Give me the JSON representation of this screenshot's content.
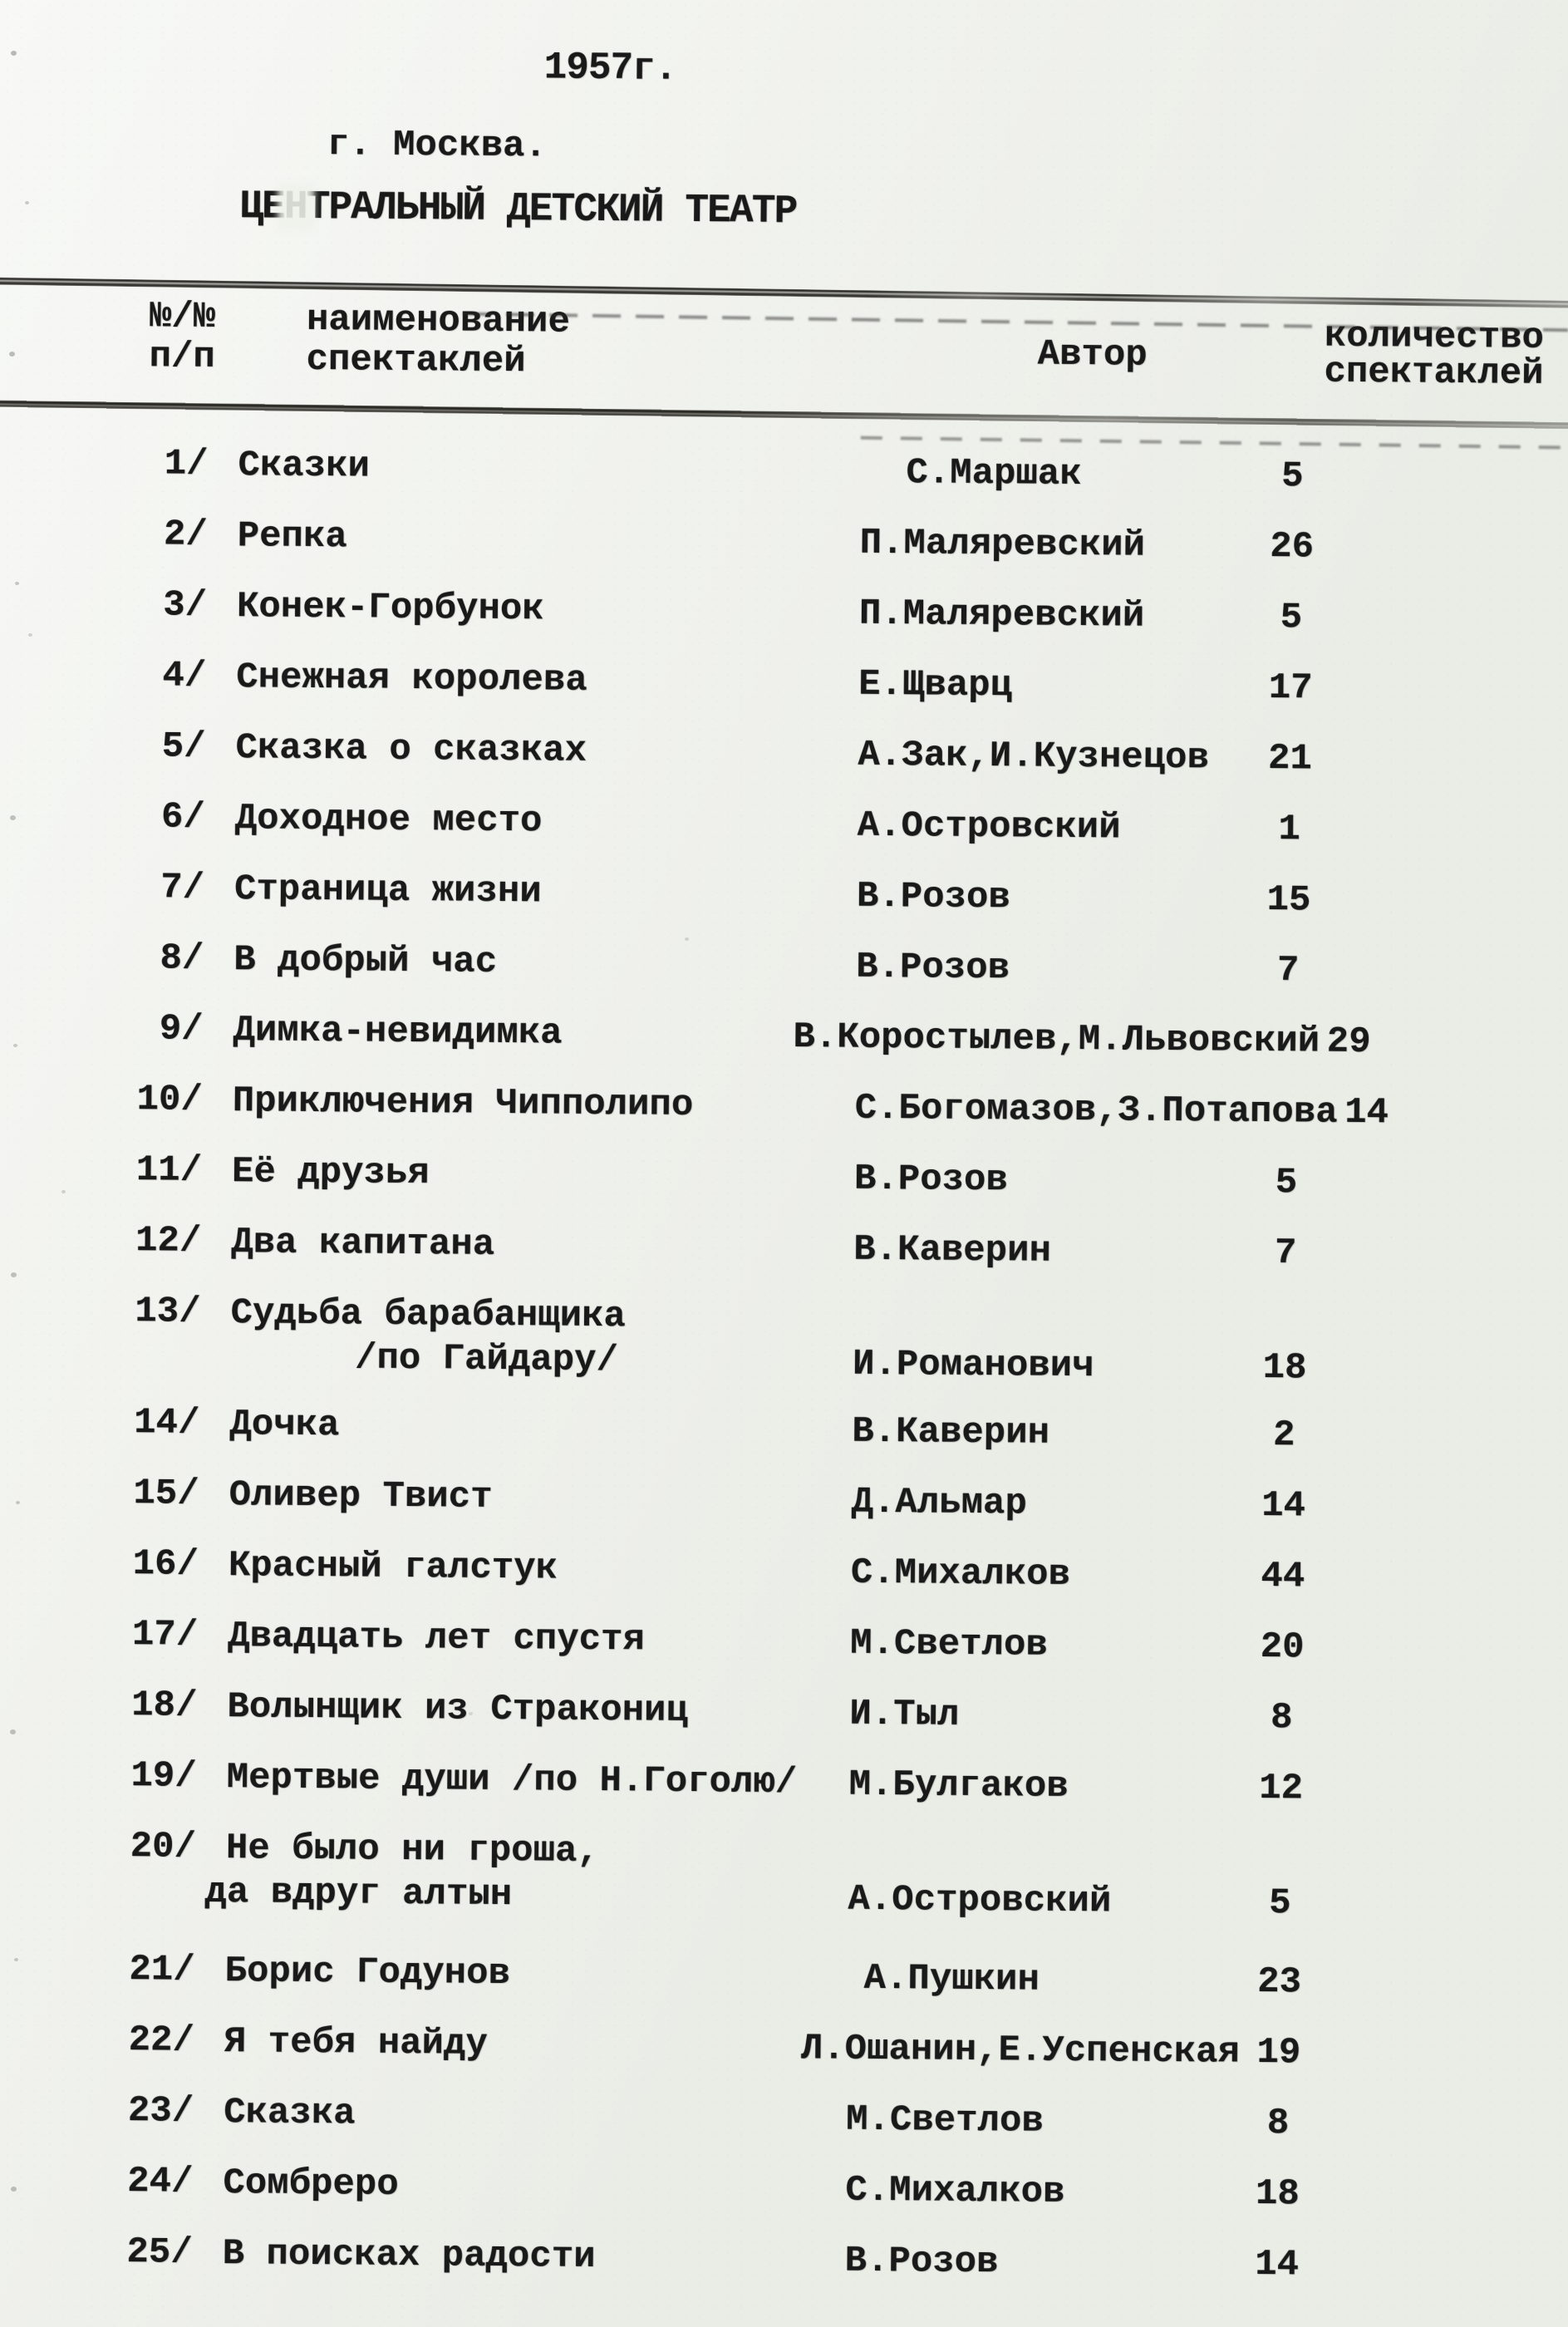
{
  "document": {
    "year": "1957г.",
    "city": "г. Москва.",
    "theater": "ЦЕНТРАЛЬНЫЙ ДЕТСКИЙ ТЕАТР"
  },
  "table": {
    "headers": {
      "num_line1": "№/№",
      "num_line2": "п/п",
      "name_line1": "наименование",
      "name_line2": "спектаклей",
      "author": "Автор",
      "count_line1": "количество",
      "count_line2": "спектаклей"
    },
    "rows": [
      {
        "num": "1/",
        "name": "Сказки",
        "author": "С.Маршак",
        "count": "5"
      },
      {
        "num": "2/",
        "name": "Репка",
        "author": "П.Маляревский",
        "count": "26"
      },
      {
        "num": "3/",
        "name": "Конек-Горбунок",
        "author": "П.Маляревский",
        "count": "5"
      },
      {
        "num": "4/",
        "name": "Снежная королева",
        "author": "Е.Щварц",
        "count": "17"
      },
      {
        "num": "5/",
        "name": "Сказка о сказках",
        "author": "А.Зак,И.Кузнецов",
        "count": "21"
      },
      {
        "num": "6/",
        "name": "Доходное место",
        "author": "А.Островский",
        "count": "1"
      },
      {
        "num": "7/",
        "name": "Страница жизни",
        "author": "В.Розов",
        "count": "15"
      },
      {
        "num": "8/",
        "name": "В добрый час",
        "author": "В.Розов",
        "count": "7"
      },
      {
        "num": "9/",
        "name": "Димка-невидимка",
        "author": "В.Коростылев,М.Львовский",
        "count": "29"
      },
      {
        "num": "10/",
        "name": "Приключения Чипполипо",
        "author": "С.Богомазов,З.Потапова",
        "count": "14"
      },
      {
        "num": "11/",
        "name": "Её друзья",
        "author": "В.Розов",
        "count": "5"
      },
      {
        "num": "12/",
        "name": "Два капитана",
        "author": "В.Каверин",
        "count": "7"
      },
      {
        "num": "13/",
        "name": "Судьба барабанщика",
        "name2": "/по Гайдару/",
        "author": "И.Романович",
        "count": "18"
      },
      {
        "num": "14/",
        "name": "Дочка",
        "author": "В.Каверин",
        "count": "2"
      },
      {
        "num": "15/",
        "name": "Оливер Твист",
        "author": "Д.Альмар",
        "count": "14"
      },
      {
        "num": "16/",
        "name": "Красный галстук",
        "author": "С.Михалков",
        "count": "44"
      },
      {
        "num": "17/",
        "name": "Двадцать лет спустя",
        "author": "М.Светлов",
        "count": "20"
      },
      {
        "num": "18/",
        "name": "Волынщик из Стракониц",
        "author": "И.Тыл",
        "count": "8"
      },
      {
        "num": "19/",
        "name": "Мертвые души /по Н.Гоголю/",
        "author": "М.Булгаков",
        "count": "12"
      },
      {
        "num": "20/",
        "name": "Не было ни гроша,",
        "name2": "да вдруг алтын",
        "author": "А.Островский",
        "count": "5"
      },
      {
        "num": "21/",
        "name": "Борис Годунов",
        "author": "А.Пушкин",
        "count": "23"
      },
      {
        "num": "22/",
        "name": "Я тебя найду",
        "author": "Л.Ошанин,Е.Успенская",
        "count": "19"
      },
      {
        "num": "23/",
        "name": "Сказка",
        "author": "М.Светлов",
        "count": "8"
      },
      {
        "num": "24/",
        "name": "Сомбреро",
        "author": "С.Михалков",
        "count": "18"
      },
      {
        "num": "25/",
        "name": "В поисках радости",
        "author": "В.Розов",
        "count": "14"
      }
    ]
  },
  "colors": {
    "paper": "#eff1eb",
    "ink": "#1a1a1a"
  }
}
